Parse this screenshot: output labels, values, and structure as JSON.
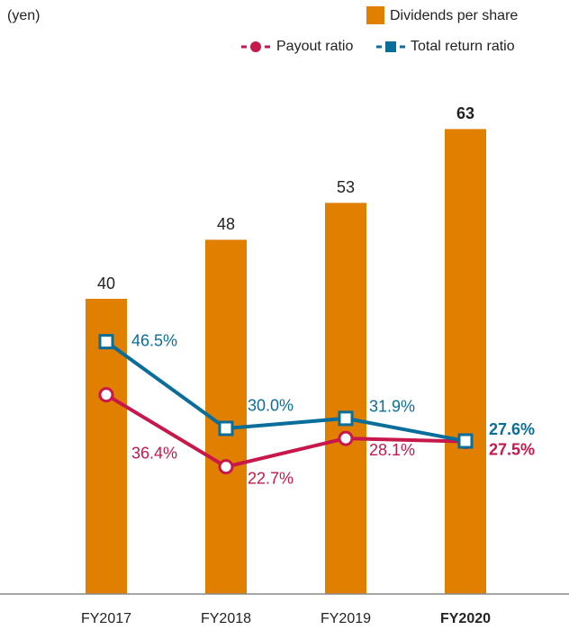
{
  "chart_data": {
    "type": "bar",
    "y_label": "(yen)",
    "categories": [
      "FY2017",
      "FY2018",
      "FY2019",
      "FY2020"
    ],
    "bar_series": {
      "name": "Dividends per share",
      "color": "#e07f00",
      "values": [
        40,
        48,
        53,
        63
      ]
    },
    "ylim": [
      0,
      80
    ],
    "y2lim": [
      -1.5,
      110.8
    ],
    "series": [
      {
        "name": "Payout ratio",
        "type": "line",
        "marker": "circle",
        "color": "#c8174a",
        "axis": "y2",
        "values": [
          36.4,
          22.7,
          28.1,
          27.5
        ],
        "value_labels": [
          "36.4%",
          "22.7%",
          "28.1%",
          "27.5%"
        ]
      },
      {
        "name": "Total return ratio",
        "type": "line",
        "marker": "square",
        "color": "#0a6e9a",
        "axis": "y2",
        "values": [
          46.5,
          30.0,
          31.9,
          27.6
        ],
        "value_labels": [
          "46.5%",
          "30.0%",
          "31.9%",
          "27.6%"
        ]
      }
    ],
    "legend": "top-right"
  }
}
